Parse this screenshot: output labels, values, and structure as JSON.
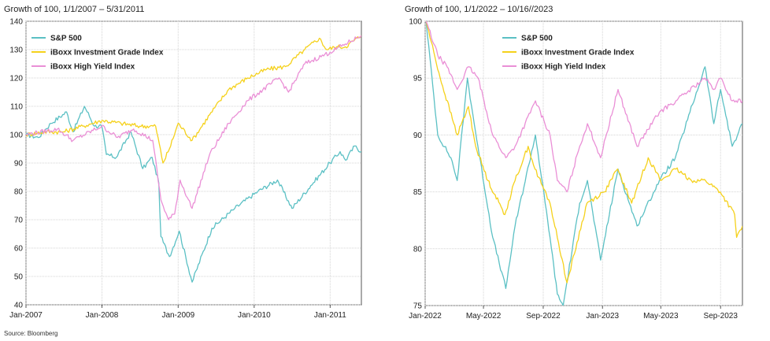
{
  "source": "Source: Bloomberg",
  "chart_data": [
    {
      "type": "line",
      "title": "Growth of 100, 1/1/2007 – 5/31/2011",
      "xlabel": "",
      "ylabel": "",
      "x_range": [
        "2007-01-01",
        "2011-05-31"
      ],
      "ylim": [
        40,
        140
      ],
      "yticks": [
        40,
        50,
        60,
        70,
        80,
        90,
        100,
        110,
        120,
        130,
        140
      ],
      "xticks": [
        {
          "label": "Jan-2007",
          "x": "2007-01-01"
        },
        {
          "label": "Jan-2008",
          "x": "2008-01-01"
        },
        {
          "label": "Jan-2009",
          "x": "2009-01-01"
        },
        {
          "label": "Jan-2010",
          "x": "2010-01-01"
        },
        {
          "label": "Jan-2011",
          "x": "2011-01-01"
        }
      ],
      "grid": true,
      "legend": "top-left",
      "series": [
        {
          "name": "S&P 500",
          "color": "#5bc0c4",
          "x": [
            "2007-01-01",
            "2007-03-01",
            "2007-05-01",
            "2007-07-15",
            "2007-08-15",
            "2007-10-09",
            "2007-11-26",
            "2007-12-31",
            "2008-01-22",
            "2008-03-10",
            "2008-05-19",
            "2008-07-15",
            "2008-08-29",
            "2008-09-30",
            "2008-10-10",
            "2008-11-20",
            "2009-01-06",
            "2009-03-09",
            "2009-06-12",
            "2009-09-30",
            "2010-01-19",
            "2010-04-23",
            "2010-07-02",
            "2010-09-30",
            "2010-12-31",
            "2011-02-18",
            "2011-03-16",
            "2011-04-29",
            "2011-05-31"
          ],
          "values": [
            100,
            99,
            104,
            108,
            101,
            110,
            103,
            103,
            93,
            92,
            101,
            88,
            92,
            83,
            64,
            57,
            66,
            48,
            67,
            74,
            80,
            84,
            74,
            82,
            90,
            94,
            91,
            96,
            94
          ]
        },
        {
          "name": "iBoxx Investment Grade Index",
          "color": "#f5d11b",
          "x": [
            "2007-01-01",
            "2007-04-01",
            "2007-07-01",
            "2007-10-01",
            "2008-01-01",
            "2008-04-01",
            "2008-07-01",
            "2008-09-15",
            "2008-10-20",
            "2008-11-20",
            "2009-01-01",
            "2009-03-09",
            "2009-06-01",
            "2009-09-01",
            "2009-12-01",
            "2010-03-01",
            "2010-06-01",
            "2010-09-01",
            "2010-11-10",
            "2010-12-15",
            "2011-02-01",
            "2011-03-15",
            "2011-05-31"
          ],
          "values": [
            100,
            101,
            101,
            103,
            105,
            104,
            103,
            103,
            90,
            95,
            104,
            98,
            107,
            116,
            120,
            123,
            124,
            130,
            134,
            130,
            131,
            131,
            135
          ]
        },
        {
          "name": "iBoxx High Yield Index",
          "color": "#ea8fd6",
          "x": [
            "2007-01-01",
            "2007-06-01",
            "2007-08-15",
            "2007-12-31",
            "2008-03-15",
            "2008-06-01",
            "2008-09-01",
            "2008-10-10",
            "2008-11-15",
            "2008-12-15",
            "2009-01-10",
            "2009-03-09",
            "2009-06-01",
            "2009-09-01",
            "2009-12-01",
            "2010-05-01",
            "2010-06-15",
            "2010-09-01",
            "2010-12-31",
            "2011-03-15",
            "2011-05-31"
          ],
          "values": [
            100,
            102,
            98,
            103,
            99,
            102,
            98,
            77,
            70,
            72,
            84,
            74,
            93,
            104,
            112,
            120,
            115,
            125,
            129,
            132,
            135
          ]
        }
      ]
    },
    {
      "type": "line",
      "title": "Growth of 100, 1/1/2022 – 10/16//2023",
      "xlabel": "",
      "ylabel": "",
      "x_range": [
        "2022-01-01",
        "2023-10-16"
      ],
      "ylim": [
        75,
        100
      ],
      "yticks": [
        75,
        80,
        85,
        90,
        95,
        100
      ],
      "xticks": [
        {
          "label": "Jan-2022",
          "x": "2022-01-01"
        },
        {
          "label": "May-2022",
          "x": "2022-05-01"
        },
        {
          "label": "Sep-2022",
          "x": "2022-09-01"
        },
        {
          "label": "Jan-2023",
          "x": "2023-01-01"
        },
        {
          "label": "May-2023",
          "x": "2023-05-01"
        },
        {
          "label": "Sep-2023",
          "x": "2023-09-01"
        }
      ],
      "grid": true,
      "legend": "top-center",
      "series": [
        {
          "name": "S&P 500",
          "color": "#5bc0c4",
          "x": [
            "2022-01-03",
            "2022-01-27",
            "2022-02-23",
            "2022-03-08",
            "2022-03-29",
            "2022-04-12",
            "2022-05-20",
            "2022-06-16",
            "2022-07-05",
            "2022-08-16",
            "2022-09-15",
            "2022-09-30",
            "2022-10-12",
            "2022-11-15",
            "2022-12-01",
            "2022-12-28",
            "2023-02-02",
            "2023-03-13",
            "2023-04-28",
            "2023-05-31",
            "2023-06-30",
            "2023-07-31",
            "2023-08-18",
            "2023-09-01",
            "2023-09-25",
            "2023-10-16"
          ],
          "values": [
            100,
            90,
            88,
            86,
            95,
            91,
            81,
            76.5,
            82,
            90,
            81,
            76,
            75,
            84,
            86,
            79,
            87,
            82,
            86,
            88,
            92,
            96,
            91,
            94,
            89,
            91
          ]
        },
        {
          "name": "iBoxx Investment Grade Index",
          "color": "#f5d11b",
          "x": [
            "2022-01-03",
            "2022-02-01",
            "2022-03-08",
            "2022-03-31",
            "2022-04-15",
            "2022-05-10",
            "2022-06-14",
            "2022-07-05",
            "2022-08-01",
            "2022-08-15",
            "2022-09-15",
            "2022-10-20",
            "2022-11-30",
            "2023-01-05",
            "2023-02-01",
            "2023-03-02",
            "2023-04-05",
            "2023-05-01",
            "2023-06-01",
            "2023-07-03",
            "2023-08-01",
            "2023-08-31",
            "2023-09-30",
            "2023-10-04",
            "2023-10-16"
          ],
          "values": [
            100,
            95,
            90,
            92.5,
            89,
            86,
            83,
            86,
            89,
            87,
            84,
            77,
            84,
            85,
            87,
            84,
            88,
            86,
            87,
            86,
            86,
            85,
            83,
            81,
            82
          ]
        },
        {
          "name": "iBoxx High Yield Index",
          "color": "#ea8fd6",
          "x": [
            "2022-01-03",
            "2022-01-27",
            "2022-02-15",
            "2022-03-08",
            "2022-03-31",
            "2022-04-20",
            "2022-05-20",
            "2022-06-16",
            "2022-07-05",
            "2022-08-16",
            "2022-09-15",
            "2022-09-30",
            "2022-10-20",
            "2022-11-15",
            "2022-12-01",
            "2022-12-28",
            "2023-02-02",
            "2023-03-13",
            "2023-04-28",
            "2023-06-01",
            "2023-07-31",
            "2023-08-18",
            "2023-09-01",
            "2023-09-25",
            "2023-10-16"
          ],
          "values": [
            100,
            97,
            96,
            94,
            96,
            95,
            90,
            88,
            89,
            93,
            90,
            86,
            85,
            89,
            91,
            88,
            94,
            89,
            92,
            93,
            95,
            94,
            95,
            93,
            93
          ]
        }
      ]
    }
  ]
}
